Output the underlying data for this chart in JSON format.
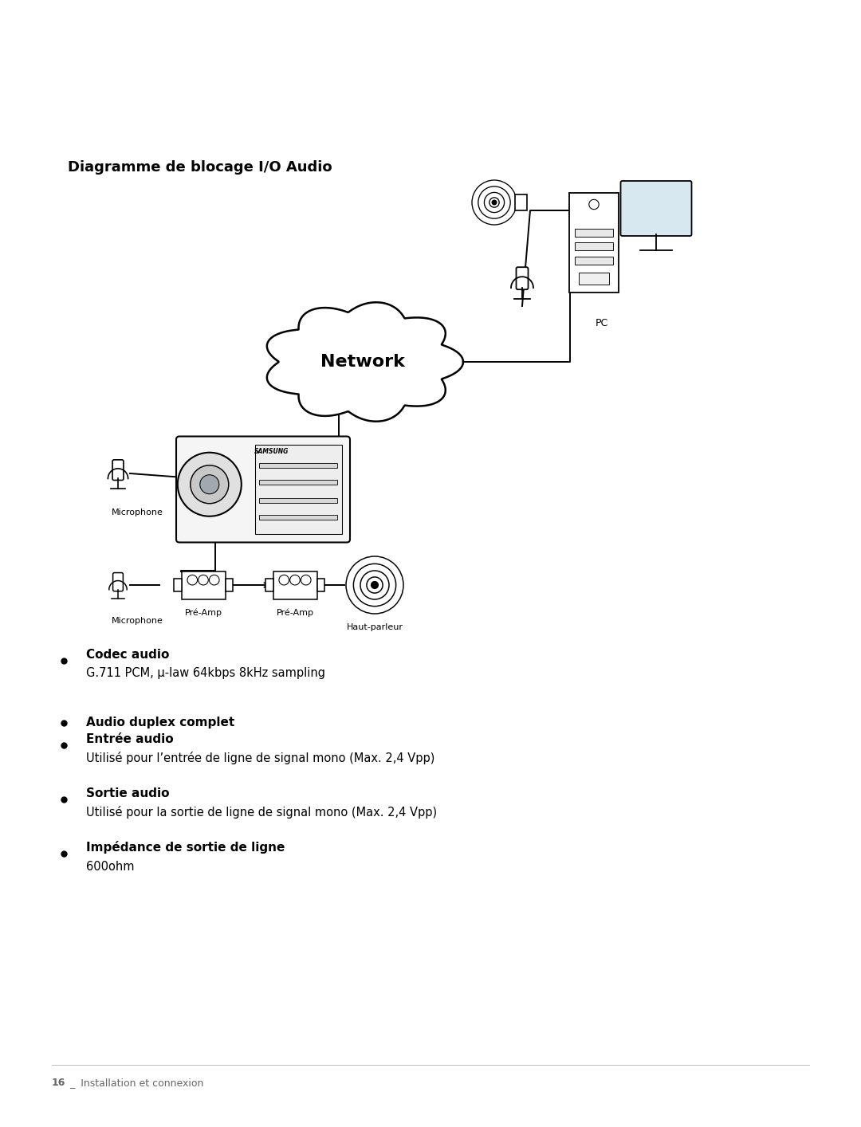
{
  "title": "Diagramme de blocage I/O Audio",
  "title_fontsize": 13,
  "network_label": "Network",
  "pc_label": "PC",
  "microphone_label1": "Microphone",
  "microphone_label2": "Microphone",
  "preamp_label1": "Pré-Amp",
  "preamp_label2": "Pré-Amp",
  "hautparleur_label": "Haut-parleur",
  "bullet_items": [
    {
      "bold": "Codec audio",
      "normal": "G.711 PCM, μ-law 64kbps 8kHz sampling"
    },
    {
      "bold": "Audio duplex complet",
      "normal": ""
    },
    {
      "bold": "Entrée audio",
      "normal": "Utilisé pour l’entrée de ligne de signal mono (Max. 2,4 Vpp)"
    },
    {
      "bold": "Sortie audio",
      "normal": "Utilisé pour la sortie de ligne de signal mono (Max. 2,4 Vpp)"
    },
    {
      "bold": "Impédance de sortie de ligne",
      "normal": "600ohm"
    }
  ],
  "footer_bold": "16",
  "footer_normal": "_  Installation et connexion",
  "bg_color": "#ffffff",
  "text_color": "#000000"
}
